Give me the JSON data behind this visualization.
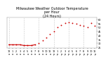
{
  "title": "Milwaukee Weather Outdoor Temperature\nper Hour\n(24 Hours)",
  "title_fontsize": 3.5,
  "hours": [
    0,
    1,
    2,
    3,
    4,
    5,
    6,
    7,
    8,
    9,
    10,
    11,
    12,
    13,
    14,
    15,
    16,
    17,
    18,
    19,
    20,
    21,
    22,
    23
  ],
  "temps": [
    28,
    28,
    28,
    28,
    27,
    27,
    27,
    28,
    30,
    33,
    37,
    41,
    45,
    50,
    53,
    55,
    56,
    55,
    54,
    53,
    52,
    50,
    55,
    52
  ],
  "dot_color": "#cc0000",
  "line_color": "#cc0000",
  "bg_color": "#ffffff",
  "plot_bg": "#ffffff",
  "grid_color": "#999999",
  "tick_color": "#000000",
  "ylim": [
    24,
    62
  ],
  "yticks": [
    25,
    30,
    35,
    40,
    45,
    50,
    55,
    60
  ],
  "ytick_labels": [
    "25",
    "30",
    "35",
    "40",
    "45",
    "50",
    "55",
    "60"
  ],
  "xtick_hours": [
    0,
    1,
    2,
    3,
    4,
    5,
    6,
    7,
    8,
    9,
    10,
    11,
    12,
    13,
    14,
    15,
    16,
    17,
    18,
    19,
    20,
    21,
    22,
    23
  ],
  "xtick_labels": [
    "12",
    "1",
    "2",
    "3",
    "4",
    "5",
    "6",
    "7",
    "8",
    "9",
    "10",
    "11",
    "12",
    "1",
    "2",
    "3",
    "4",
    "5",
    "6",
    "7",
    "8",
    "9",
    "10",
    "11"
  ],
  "vgrid_hours": [
    0,
    4,
    8,
    12,
    16,
    20
  ],
  "marker_size": 1.8,
  "linewidth": 0.8,
  "tick_fontsize": 2.5,
  "ylabel_right": true
}
